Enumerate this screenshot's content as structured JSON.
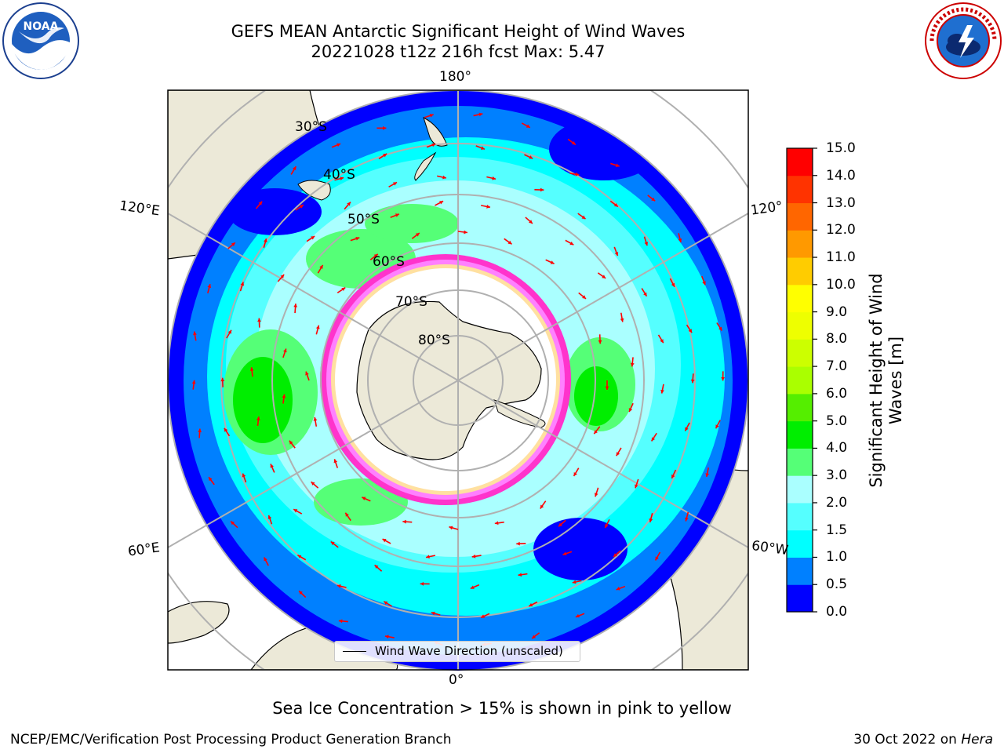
{
  "title": {
    "line1": "GEFS MEAN Antarctic Significant Height of Wind Waves",
    "line2": "20221028 t12z 216h fcst   Max: 5.47"
  },
  "logos": {
    "left": {
      "name": "NOAA",
      "ring_text": "NATIONAL OCEANIC AND ATMOSPHERIC ADMINISTRATION · U.S. DEPARTMENT OF COMMERCE"
    },
    "right": {
      "name": "NATIONAL WEATHER SERVICE"
    }
  },
  "map": {
    "projection": "south-polar-stereographic",
    "meridian_labels": {
      "top": "180°",
      "bottom": "0°",
      "upper_left": "120°E",
      "lower_left": "60°E",
      "upper_right": "120°",
      "lower_right": "60°W"
    },
    "latitude_labels": [
      "30°S",
      "40°S",
      "50°S",
      "60°S",
      "70°S",
      "80°S"
    ],
    "land_color": "#ece9d8",
    "ocean_color": "#ffffff",
    "sea_ice_colors": [
      "#ff33cc",
      "#ff80ff",
      "#ffb347",
      "#ffe0a0"
    ],
    "arrow_color": "#ff0000"
  },
  "legend": {
    "label": "Wind Wave Direction (unscaled)"
  },
  "colorbar": {
    "label": "Significant Height of Wind Waves [m]",
    "ticks": [
      "0.0",
      "0.5",
      "1.0",
      "1.5",
      "2.0",
      "3.0",
      "4.0",
      "5.0",
      "6.0",
      "7.0",
      "8.0",
      "9.0",
      "10.0",
      "11.0",
      "12.0",
      "13.0",
      "14.0",
      "15.0"
    ],
    "colors": [
      "#0000ff",
      "#0080ff",
      "#00ffff",
      "#55ffff",
      "#aaffff",
      "#55ff77",
      "#00ee00",
      "#55ee00",
      "#aaff00",
      "#ccff00",
      "#eeff00",
      "#ffff00",
      "#ffcc00",
      "#ff9900",
      "#ff6600",
      "#ff3300",
      "#ff0000"
    ]
  },
  "caption": "Sea Ice Concentration > 15% is shown in pink to yellow",
  "footer": {
    "left": "NCEP/EMC/Verification Post Processing Product Generation Branch",
    "right_date": "30 Oct 2022 on",
    "right_host": "Hera"
  }
}
